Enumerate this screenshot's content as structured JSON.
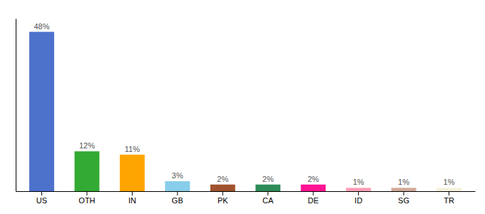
{
  "chart_data": {
    "type": "bar",
    "categories": [
      "US",
      "OTH",
      "IN",
      "GB",
      "PK",
      "CA",
      "DE",
      "ID",
      "SG",
      "TR"
    ],
    "values": [
      48,
      12,
      11,
      3,
      2,
      2,
      2,
      1,
      1,
      1
    ],
    "value_labels": [
      "48%",
      "12%",
      "11%",
      "3%",
      "2%",
      "2%",
      "2%",
      "1%",
      "1%",
      "1%"
    ],
    "colors": [
      "#4d72cc",
      "#33aa33",
      "#ffa500",
      "#87ceeb",
      "#a0522d",
      "#2e8b57",
      "#ff1493",
      "#ff9eb5",
      "#d2a898",
      "#f5f0dc"
    ],
    "ylim": [
      0,
      52
    ],
    "grid": false,
    "data_labels": true,
    "tick_labels": "x"
  }
}
